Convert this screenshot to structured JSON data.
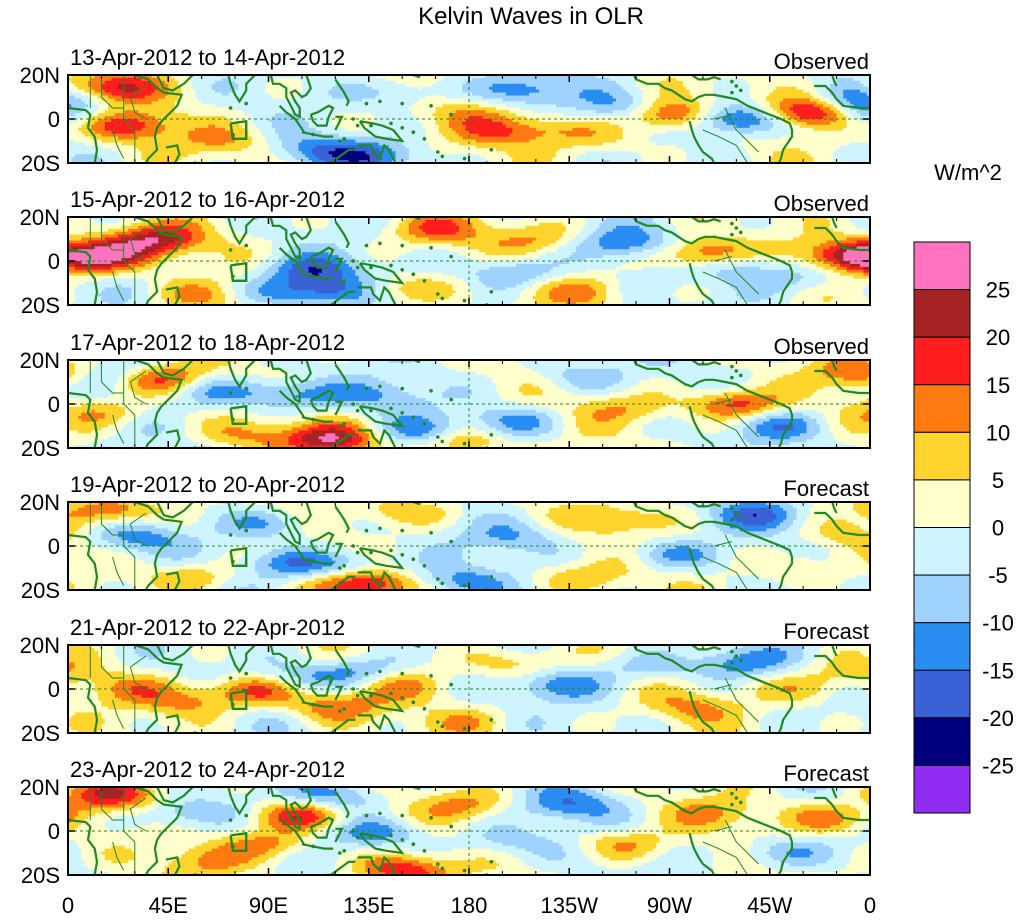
{
  "chart_data": {
    "type": "heatmap",
    "title": "Kelvin Waves in OLR",
    "units": "W/m^2",
    "x_ticks": [
      "0",
      "45E",
      "90E",
      "135E",
      "180",
      "135W",
      "90W",
      "45W",
      "0"
    ],
    "x_tick_lon": [
      0,
      45,
      90,
      135,
      180,
      225,
      270,
      315,
      360
    ],
    "y_ticks": [
      "20N",
      "0",
      "20S"
    ],
    "y_tick_lat": [
      20,
      0,
      -20
    ],
    "xlim": [
      0,
      360
    ],
    "ylim": [
      -20,
      20
    ],
    "reference_lines": [
      "equator (0)",
      "180"
    ],
    "panels": [
      {
        "date_range": "13-Apr-2012 to 14-Apr-2012",
        "status": "Observed"
      },
      {
        "date_range": "15-Apr-2012 to 16-Apr-2012",
        "status": "Observed"
      },
      {
        "date_range": "17-Apr-2012 to 18-Apr-2012",
        "status": "Observed"
      },
      {
        "date_range": "19-Apr-2012 to 20-Apr-2012",
        "status": "Forecast"
      },
      {
        "date_range": "21-Apr-2012 to 22-Apr-2012",
        "status": "Forecast"
      },
      {
        "date_range": "23-Apr-2012 to 24-Apr-2012",
        "status": "Forecast"
      }
    ],
    "colorbar": {
      "labels": [
        "25",
        "20",
        "15",
        "10",
        "5",
        "0",
        "-5",
        "-10",
        "-15",
        "-20",
        "-25"
      ],
      "colors": [
        "#ff72c0",
        "#a82323",
        "#ff1e1e",
        "#ff7a10",
        "#ffd42c",
        "#ffffcc",
        "#cdf4ff",
        "#a0d2ff",
        "#2a8df2",
        "#3a62d6",
        "#00007f",
        "#8f2ef2"
      ]
    },
    "coast_color": "#1f8a1f",
    "anomaly_centers": [
      [
        [
          20,
          14,
          0.9
        ],
        [
          28,
          -3,
          0.8
        ],
        [
          -5,
          2,
          -0.5
        ],
        [
          112,
          -14,
          -0.5
        ],
        [
          138,
          -17,
          -0.6
        ],
        [
          150,
          12,
          -0.4
        ],
        [
          195,
          -6,
          0.5
        ],
        [
          205,
          13,
          -0.6
        ],
        [
          220,
          -4,
          0.4
        ],
        [
          250,
          5,
          -0.5
        ],
        [
          270,
          2,
          1.0
        ],
        [
          300,
          0,
          -1.1
        ],
        [
          335,
          3,
          1.3
        ],
        [
          355,
          8,
          -0.6
        ],
        [
          180,
          3,
          0.3
        ],
        [
          70,
          -10,
          0.4
        ],
        [
          240,
          -10,
          0.3
        ]
      ],
      [
        [
          40,
          10,
          0.9
        ],
        [
          20,
          4,
          0.6
        ],
        [
          8,
          0,
          0.7
        ],
        [
          95,
          -14,
          -0.5
        ],
        [
          110,
          -4,
          -0.7
        ],
        [
          118,
          -14,
          -0.6
        ],
        [
          150,
          -13,
          0.5
        ],
        [
          165,
          14,
          0.6
        ],
        [
          200,
          -5,
          -0.6
        ],
        [
          210,
          10,
          0.4
        ],
        [
          250,
          8,
          -0.6
        ],
        [
          285,
          3,
          0.9
        ],
        [
          300,
          -2,
          -0.5
        ],
        [
          330,
          -8,
          -0.4
        ],
        [
          350,
          3,
          0.9
        ],
        [
          230,
          -14,
          0.4
        ],
        [
          60,
          -16,
          0.4
        ]
      ],
      [
        [
          25,
          14,
          -0.5
        ],
        [
          40,
          12,
          0.9
        ],
        [
          15,
          -4,
          0.5
        ],
        [
          70,
          6,
          -0.5
        ],
        [
          100,
          4,
          -0.6
        ],
        [
          118,
          -16,
          1.0
        ],
        [
          160,
          -13,
          -0.6
        ],
        [
          175,
          -17,
          0.7
        ],
        [
          140,
          4,
          -0.4
        ],
        [
          200,
          -8,
          -0.5
        ],
        [
          230,
          13,
          -0.4
        ],
        [
          250,
          -2,
          0.4
        ],
        [
          300,
          0,
          0.9
        ],
        [
          320,
          -10,
          -0.5
        ],
        [
          355,
          14,
          0.6
        ],
        [
          80,
          -14,
          0.4
        ]
      ],
      [
        [
          20,
          16,
          0.8
        ],
        [
          30,
          4,
          -0.5
        ],
        [
          55,
          -14,
          0.5
        ],
        [
          90,
          10,
          -0.5
        ],
        [
          100,
          -8,
          -0.6
        ],
        [
          128,
          -9,
          -0.5
        ],
        [
          133,
          -17,
          1.0
        ],
        [
          150,
          16,
          0.5
        ],
        [
          175,
          -16,
          -0.5
        ],
        [
          200,
          4,
          -0.4
        ],
        [
          230,
          -14,
          0.4
        ],
        [
          250,
          12,
          0.4
        ],
        [
          270,
          -4,
          -0.5
        ],
        [
          310,
          14,
          -0.6
        ],
        [
          330,
          -10,
          0.4
        ],
        [
          350,
          4,
          0.3
        ]
      ],
      [
        [
          30,
          0,
          0.4
        ],
        [
          55,
          -6,
          0.5
        ],
        [
          85,
          0,
          0.9
        ],
        [
          100,
          4,
          -0.5
        ],
        [
          120,
          -8,
          0.6
        ],
        [
          130,
          8,
          -0.6
        ],
        [
          150,
          2,
          0.4
        ],
        [
          180,
          -15,
          0.3
        ],
        [
          200,
          12,
          0.5
        ],
        [
          220,
          2,
          -0.5
        ],
        [
          260,
          10,
          -0.4
        ],
        [
          280,
          -8,
          0.4
        ],
        [
          300,
          12,
          -0.6
        ],
        [
          330,
          0,
          0.4
        ],
        [
          350,
          8,
          0.4
        ]
      ],
      [
        [
          20,
          16,
          0.8
        ],
        [
          50,
          8,
          -0.5
        ],
        [
          90,
          -6,
          0.6
        ],
        [
          103,
          7,
          0.9
        ],
        [
          120,
          16,
          -0.6
        ],
        [
          138,
          -1,
          -0.6
        ],
        [
          150,
          -18,
          0.9
        ],
        [
          180,
          12,
          0.5
        ],
        [
          195,
          -5,
          -0.4
        ],
        [
          225,
          12,
          -0.6
        ],
        [
          250,
          -6,
          0.5
        ],
        [
          290,
          8,
          0.4
        ],
        [
          320,
          -10,
          -0.5
        ],
        [
          345,
          6,
          0.6
        ],
        [
          60,
          -14,
          0.4
        ]
      ]
    ]
  }
}
